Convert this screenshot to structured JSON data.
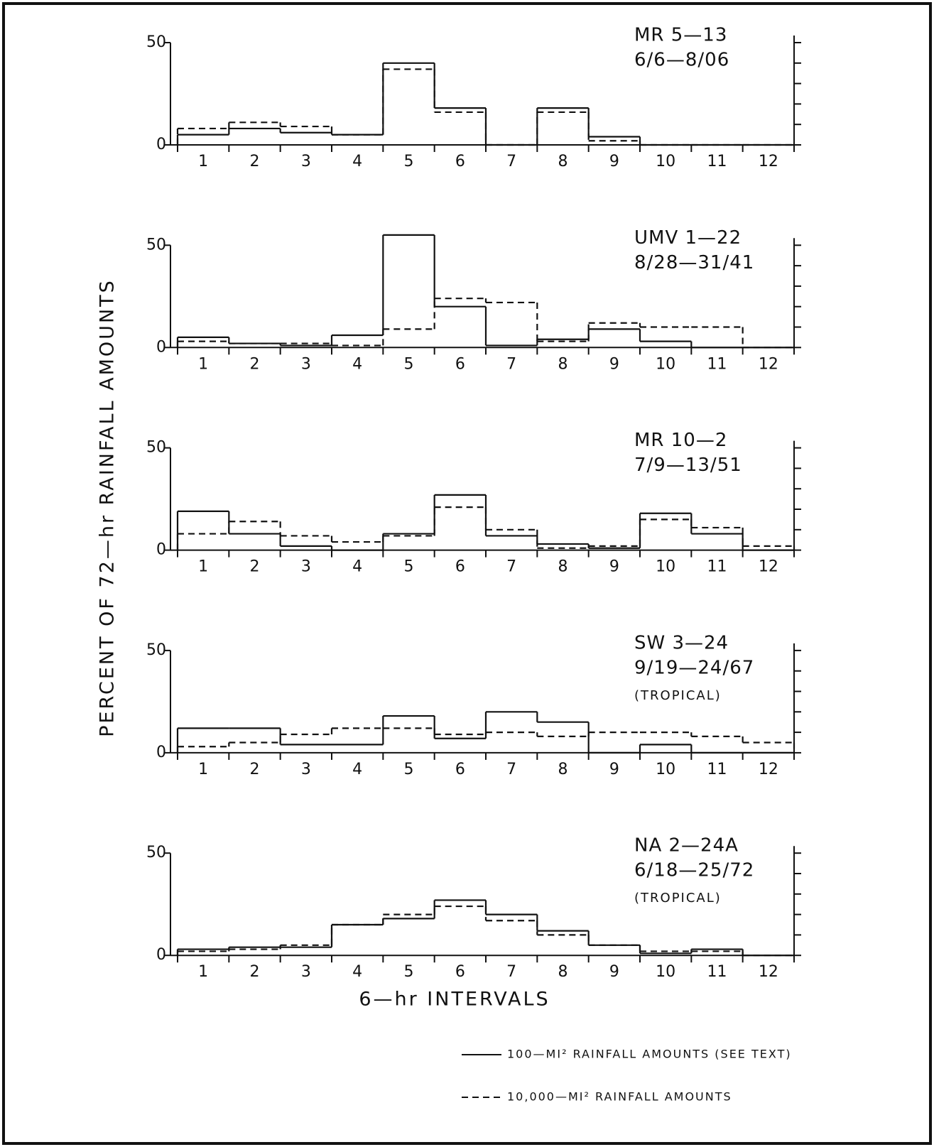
{
  "ylabel": "PERCENT OF 72—hr RAINFALL AMOUNTS",
  "xlabel": "6—hr INTERVALS",
  "legend": [
    {
      "name": "100—MI² RAINFALL AMOUNTS  (SEE TEXT)",
      "dash": false
    },
    {
      "name": "10,000—MI² RAINFALL  AMOUNTS",
      "dash": true
    }
  ],
  "chart_data": [
    {
      "type": "step",
      "title": [
        "MR   5—13",
        "6/6—8/06"
      ],
      "categories": [
        "1",
        "2",
        "3",
        "4",
        "5",
        "6",
        "7",
        "8",
        "9",
        "10",
        "11",
        "12"
      ],
      "ylim": [
        0,
        50
      ],
      "yticks": [
        0,
        50
      ],
      "minor_yticks": [
        10,
        20,
        30,
        40
      ],
      "series": [
        {
          "color": "#111111",
          "dash": false,
          "values": [
            5,
            8,
            6,
            5,
            40,
            18,
            0,
            18,
            4,
            0,
            0,
            0
          ]
        },
        {
          "color": "#111111",
          "dash": true,
          "values": [
            8,
            11,
            9,
            5,
            37,
            16,
            0,
            16,
            2,
            0,
            0,
            0
          ]
        }
      ]
    },
    {
      "type": "step",
      "title": [
        "UMV 1—22",
        "8/28—31/41"
      ],
      "categories": [
        "1",
        "2",
        "3",
        "4",
        "5",
        "6",
        "7",
        "8",
        "9",
        "10",
        "11",
        "12"
      ],
      "ylim": [
        0,
        50
      ],
      "yticks": [
        0,
        50
      ],
      "minor_yticks": [
        10,
        20,
        30,
        40
      ],
      "series": [
        {
          "color": "#111111",
          "dash": false,
          "values": [
            5,
            2,
            1,
            6,
            55,
            20,
            1,
            4,
            9,
            3,
            0,
            0
          ]
        },
        {
          "color": "#111111",
          "dash": true,
          "values": [
            3,
            2,
            2,
            1,
            9,
            24,
            22,
            3,
            12,
            10,
            10,
            0
          ]
        }
      ]
    },
    {
      "type": "step",
      "title": [
        "MR   10—2",
        "7/9—13/51"
      ],
      "categories": [
        "1",
        "2",
        "3",
        "4",
        "5",
        "6",
        "7",
        "8",
        "9",
        "10",
        "11",
        "12"
      ],
      "ylim": [
        0,
        50
      ],
      "yticks": [
        0,
        50
      ],
      "minor_yticks": [
        10,
        20,
        30,
        40
      ],
      "series": [
        {
          "color": "#111111",
          "dash": false,
          "values": [
            19,
            8,
            2,
            0,
            8,
            27,
            7,
            3,
            1,
            18,
            8,
            0
          ]
        },
        {
          "color": "#111111",
          "dash": true,
          "values": [
            8,
            14,
            7,
            4,
            7,
            21,
            10,
            1,
            2,
            15,
            11,
            2
          ]
        }
      ]
    },
    {
      "type": "step",
      "title": [
        "SW  3—24",
        "9/19—24/67"
      ],
      "note": "(TROPICAL)",
      "categories": [
        "1",
        "2",
        "3",
        "4",
        "5",
        "6",
        "7",
        "8",
        "9",
        "10",
        "11",
        "12"
      ],
      "ylim": [
        0,
        50
      ],
      "yticks": [
        0,
        50
      ],
      "minor_yticks": [
        10,
        20,
        30,
        40
      ],
      "series": [
        {
          "color": "#111111",
          "dash": false,
          "values": [
            12,
            12,
            4,
            4,
            18,
            7,
            20,
            15,
            0,
            4,
            0,
            0
          ]
        },
        {
          "color": "#111111",
          "dash": true,
          "values": [
            3,
            5,
            9,
            12,
            12,
            9,
            10,
            8,
            10,
            10,
            8,
            5
          ]
        }
      ]
    },
    {
      "type": "step",
      "title": [
        "NA 2—24A",
        "6/18—25/72"
      ],
      "note": "(TROPICAL)",
      "categories": [
        "1",
        "2",
        "3",
        "4",
        "5",
        "6",
        "7",
        "8",
        "9",
        "10",
        "11",
        "12"
      ],
      "ylim": [
        0,
        50
      ],
      "yticks": [
        0,
        50
      ],
      "minor_yticks": [
        10,
        20,
        30,
        40
      ],
      "series": [
        {
          "color": "#111111",
          "dash": false,
          "values": [
            3,
            4,
            4,
            15,
            18,
            27,
            20,
            12,
            5,
            1,
            3,
            0
          ]
        },
        {
          "color": "#111111",
          "dash": true,
          "values": [
            2,
            3,
            5,
            15,
            20,
            24,
            17,
            10,
            5,
            2,
            2,
            0
          ]
        }
      ]
    }
  ]
}
